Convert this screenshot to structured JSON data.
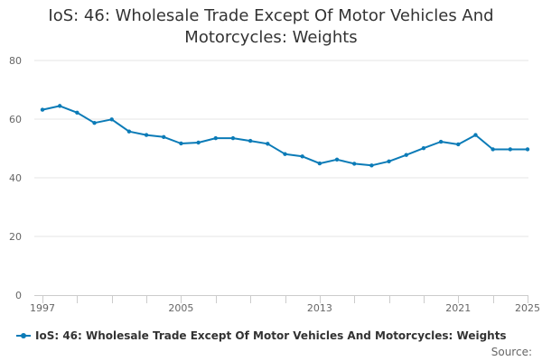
{
  "colors": {
    "series": "#0b7bb7",
    "grid": "#e6e6e6",
    "axis": "#cccccc"
  },
  "source_label": "Source:",
  "chart_data": {
    "type": "line",
    "title": "IoS: 46: Wholesale Trade Except Of Motor Vehicles And Motorcycles: Weights",
    "title_lines": [
      "IoS: 46: Wholesale Trade Except Of Motor Vehicles And",
      "Motorcycles: Weights"
    ],
    "xlabel": "",
    "ylabel": "",
    "xlim": [
      1997,
      2025
    ],
    "ylim": [
      0,
      80
    ],
    "y_ticks": [
      0,
      20,
      40,
      60,
      80
    ],
    "x_tick_labels": [
      1997,
      2005,
      2013,
      2021,
      2025
    ],
    "x_minor_ticks": [
      1997,
      1999,
      2001,
      2003,
      2005,
      2007,
      2009,
      2011,
      2013,
      2015,
      2017,
      2019,
      2021,
      2023,
      2025
    ],
    "grid": true,
    "legend_position": "bottom-left",
    "series": [
      {
        "name": "IoS: 46: Wholesale Trade Except Of Motor Vehicles And Motorcycles: Weights",
        "x": [
          1997,
          1998,
          1999,
          2000,
          2001,
          2002,
          2003,
          2004,
          2005,
          2006,
          2007,
          2008,
          2009,
          2010,
          2011,
          2012,
          2013,
          2014,
          2015,
          2016,
          2017,
          2018,
          2019,
          2020,
          2021,
          2022,
          2023,
          2024,
          2025
        ],
        "values": [
          63.2,
          64.5,
          62.2,
          58.7,
          59.9,
          55.8,
          54.6,
          53.9,
          51.7,
          52.0,
          53.5,
          53.5,
          52.6,
          51.6,
          48.1,
          47.3,
          44.9,
          46.2,
          44.8,
          44.2,
          45.6,
          47.8,
          50.1,
          52.3,
          51.4,
          54.6,
          49.7,
          49.7,
          49.7
        ]
      }
    ]
  }
}
